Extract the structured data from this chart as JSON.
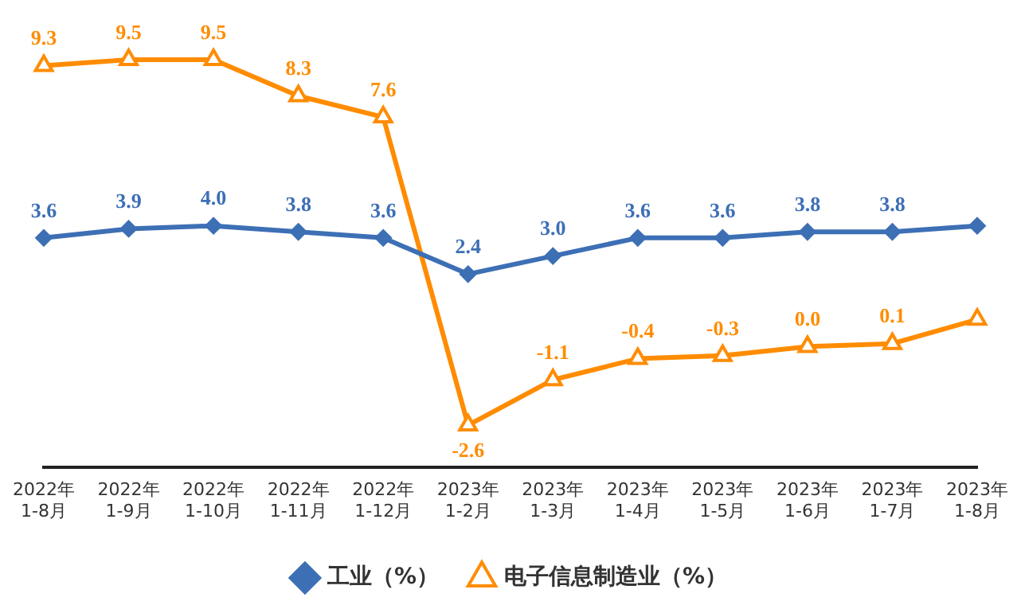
{
  "chart_data": {
    "type": "line",
    "categories": [
      "2022年\n1-8月",
      "2022年\n1-9月",
      "2022年\n1-10月",
      "2022年\n1-11月",
      "2022年\n1-12月",
      "2023年\n1-2月",
      "2023年\n1-3月",
      "2023年\n1-4月",
      "2023年\n1-5月",
      "2023年\n1-6月",
      "2023年\n1-7月",
      "2023年\n1-8月"
    ],
    "series": [
      {
        "name": "工业（%）",
        "color": "#3d6fb5",
        "marker": "diamond",
        "values": [
          3.6,
          3.9,
          4.0,
          3.8,
          3.6,
          2.4,
          3.0,
          3.6,
          3.6,
          3.8,
          3.8,
          4.0
        ],
        "value_labels": [
          "3.6",
          "3.9",
          "4.0",
          "3.8",
          "3.6",
          "2.4",
          "3.0",
          "3.6",
          "3.6",
          "3.8",
          "3.8",
          null
        ]
      },
      {
        "name": "电子信息制造业（%）",
        "color": "#ff8c00",
        "marker": "triangle",
        "values": [
          9.3,
          9.5,
          9.5,
          8.3,
          7.6,
          -2.6,
          -1.1,
          -0.4,
          -0.3,
          0.0,
          0.1,
          0.9
        ],
        "value_labels": [
          "9.3",
          "9.5",
          "9.5",
          "8.3",
          "7.6",
          "-2.6",
          "-1.1",
          "-0.4",
          "-0.3",
          "0.0",
          "0.1",
          null
        ]
      }
    ],
    "legend": "bottom",
    "grid": false
  }
}
